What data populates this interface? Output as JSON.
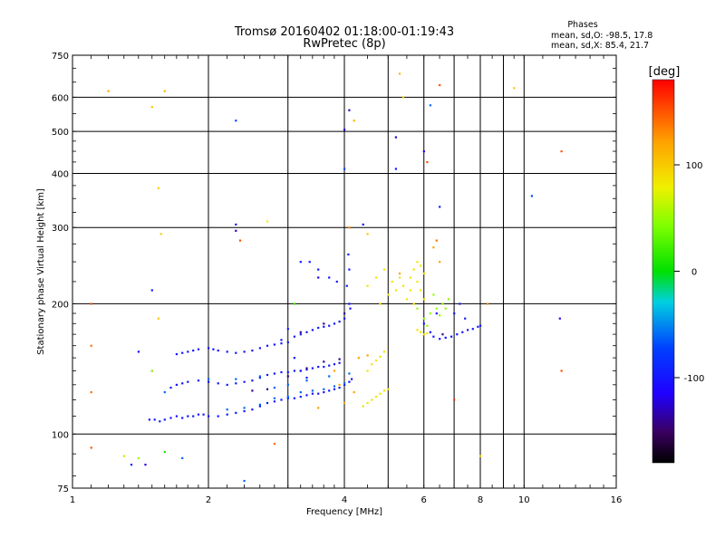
{
  "chart_data": {
    "type": "scatter",
    "title_line1": "Tromsø 20160402 01:18:00-01:19:43",
    "title_line2": "RwPretec (8p)",
    "xlabel": "Frequency [MHz]",
    "ylabel": "Stationary phase Virtual Height [km]",
    "x_scale": "log",
    "y_scale": "log",
    "xlim": [
      1,
      16
    ],
    "ylim": [
      75,
      750
    ],
    "x_ticks": [
      1,
      2,
      4,
      6,
      8,
      10,
      16
    ],
    "x_tick_labels": [
      "1",
      "2",
      "4",
      "6",
      "8",
      "10",
      "16"
    ],
    "x_minor_ticks": [
      3,
      5,
      7,
      9
    ],
    "y_ticks": [
      75,
      100,
      200,
      300,
      400,
      500,
      600,
      750
    ],
    "y_tick_labels": [
      "75",
      "100",
      "200",
      "300",
      "400",
      "500",
      "600",
      "750"
    ],
    "grid": true,
    "legend": {
      "title": "Phases",
      "line1": "mean, sd,O:  -98.5, 17.8",
      "line2": "mean, sd,X:   85.4, 21.7"
    },
    "colorbar": {
      "label": "[deg]",
      "range": [
        -180,
        180
      ],
      "ticks": [
        100,
        0,
        -100
      ],
      "tick_labels": [
        "100",
        "0",
        "-100"
      ]
    },
    "series": [
      {
        "comment": "O-mode trace, phase ~ -100 deg",
        "phase": -100,
        "points": [
          [
            1.48,
            108
          ],
          [
            1.52,
            108
          ],
          [
            1.56,
            107
          ],
          [
            1.6,
            108
          ],
          [
            1.65,
            109
          ],
          [
            1.7,
            110
          ],
          [
            1.75,
            109
          ],
          [
            1.8,
            110
          ],
          [
            1.85,
            110
          ],
          [
            1.9,
            111
          ],
          [
            1.95,
            111
          ],
          [
            2.0,
            110
          ],
          [
            2.1,
            110
          ],
          [
            2.2,
            111
          ],
          [
            2.3,
            112
          ],
          [
            2.4,
            113
          ],
          [
            2.5,
            114
          ],
          [
            2.6,
            116
          ],
          [
            2.7,
            118
          ],
          [
            2.8,
            119
          ],
          [
            2.9,
            120
          ],
          [
            3.0,
            121
          ],
          [
            3.1,
            121
          ],
          [
            3.2,
            122
          ],
          [
            3.3,
            123
          ],
          [
            3.4,
            124
          ],
          [
            3.5,
            124
          ],
          [
            3.6,
            125
          ],
          [
            3.7,
            126
          ],
          [
            3.8,
            127
          ],
          [
            3.9,
            128
          ],
          [
            4.0,
            130
          ],
          [
            4.1,
            132
          ],
          [
            4.15,
            134
          ],
          [
            1.65,
            128
          ],
          [
            1.7,
            130
          ],
          [
            1.75,
            131
          ],
          [
            1.8,
            132
          ],
          [
            1.9,
            133
          ],
          [
            2.0,
            132
          ],
          [
            2.1,
            131
          ],
          [
            2.2,
            130
          ],
          [
            2.3,
            131
          ],
          [
            2.4,
            132
          ],
          [
            2.5,
            133
          ],
          [
            2.6,
            135
          ],
          [
            2.7,
            137
          ],
          [
            2.8,
            138
          ],
          [
            2.9,
            139
          ],
          [
            3.0,
            139
          ],
          [
            3.1,
            140
          ],
          [
            3.2,
            140
          ],
          [
            3.3,
            141
          ],
          [
            3.4,
            142
          ],
          [
            3.5,
            143
          ],
          [
            3.6,
            143
          ],
          [
            3.7,
            144
          ],
          [
            3.8,
            145
          ],
          [
            3.9,
            146
          ],
          [
            1.7,
            153
          ],
          [
            1.75,
            154
          ],
          [
            1.8,
            155
          ],
          [
            1.85,
            156
          ],
          [
            1.9,
            157
          ],
          [
            2.0,
            158
          ],
          [
            2.05,
            157
          ],
          [
            2.1,
            156
          ],
          [
            2.2,
            155
          ],
          [
            2.3,
            154
          ],
          [
            2.4,
            155
          ],
          [
            2.5,
            156
          ],
          [
            2.6,
            158
          ],
          [
            2.7,
            160
          ],
          [
            2.8,
            161
          ],
          [
            2.9,
            162
          ],
          [
            3.0,
            163
          ],
          [
            3.1,
            168
          ],
          [
            3.2,
            170
          ],
          [
            3.3,
            172
          ],
          [
            3.4,
            174
          ],
          [
            3.5,
            176
          ],
          [
            3.6,
            177
          ],
          [
            3.7,
            178
          ],
          [
            3.8,
            180
          ],
          [
            3.9,
            182
          ],
          [
            4.0,
            185
          ],
          [
            4.1,
            200
          ],
          [
            4.05,
            220
          ],
          [
            4.1,
            240
          ],
          [
            4.08,
            260
          ],
          [
            4.12,
            195
          ],
          [
            3.35,
            250
          ],
          [
            3.5,
            240
          ],
          [
            3.7,
            230
          ],
          [
            3.85,
            225
          ],
          [
            2.9,
            165
          ],
          [
            3.0,
            175
          ],
          [
            3.1,
            150
          ],
          [
            3.2,
            140
          ],
          [
            3.3,
            135
          ],
          [
            6.3,
            168
          ],
          [
            6.5,
            166
          ],
          [
            6.7,
            167
          ],
          [
            6.9,
            168
          ],
          [
            7.1,
            170
          ],
          [
            7.3,
            172
          ],
          [
            7.5,
            174
          ],
          [
            7.7,
            175
          ],
          [
            7.9,
            177
          ],
          [
            8.0,
            178
          ],
          [
            6.0,
            180
          ],
          [
            6.2,
            172
          ],
          [
            7.0,
            190
          ],
          [
            7.2,
            200
          ],
          [
            7.4,
            185
          ],
          [
            6.4,
            190
          ]
        ]
      },
      {
        "comment": "O-mode trace, phase ~ -60 deg",
        "phase": -60,
        "points": [
          [
            2.2,
            114
          ],
          [
            2.4,
            115
          ],
          [
            2.6,
            117
          ],
          [
            2.8,
            121
          ],
          [
            3.0,
            122
          ],
          [
            3.2,
            125
          ],
          [
            3.4,
            126
          ],
          [
            3.6,
            127
          ],
          [
            3.8,
            129
          ],
          [
            4.0,
            131
          ],
          [
            2.0,
            134
          ],
          [
            2.3,
            134
          ],
          [
            2.6,
            136
          ],
          [
            2.8,
            128
          ],
          [
            3.0,
            130
          ],
          [
            3.3,
            133
          ],
          [
            3.7,
            136
          ],
          [
            4.1,
            138
          ],
          [
            1.5,
            140
          ],
          [
            1.6,
            125
          ]
        ]
      },
      {
        "comment": "O-mode trace, phase ~ -140 deg",
        "phase": -140,
        "points": [
          [
            2.5,
            126
          ],
          [
            2.7,
            127
          ],
          [
            3.0,
            136
          ],
          [
            3.3,
            142
          ],
          [
            3.6,
            147
          ],
          [
            3.9,
            149
          ],
          [
            3.2,
            172
          ],
          [
            3.6,
            180
          ],
          [
            4.0,
            190
          ],
          [
            6.6,
            170
          ]
        ]
      },
      {
        "comment": "X-mode trace, phase ~ 85 deg",
        "phase": 85,
        "points": [
          [
            4.6,
            120
          ],
          [
            4.7,
            122
          ],
          [
            4.8,
            124
          ],
          [
            4.9,
            126
          ],
          [
            5.0,
            127
          ],
          [
            4.5,
            118
          ],
          [
            4.4,
            116
          ],
          [
            4.6,
            145
          ],
          [
            4.7,
            148
          ],
          [
            4.8,
            151
          ],
          [
            4.5,
            140
          ],
          [
            4.9,
            155
          ],
          [
            4.8,
            200
          ],
          [
            5.0,
            210
          ],
          [
            5.2,
            215
          ],
          [
            5.4,
            220
          ],
          [
            5.6,
            230
          ],
          [
            5.7,
            240
          ],
          [
            5.8,
            250
          ],
          [
            5.9,
            245
          ],
          [
            6.0,
            235
          ],
          [
            5.5,
            205
          ],
          [
            5.6,
            215
          ],
          [
            5.8,
            225
          ],
          [
            5.9,
            215
          ],
          [
            6.0,
            205
          ],
          [
            5.7,
            200
          ],
          [
            5.3,
            230
          ],
          [
            5.1,
            225
          ],
          [
            5.9,
            172
          ],
          [
            6.1,
            171
          ],
          [
            5.8,
            174
          ],
          [
            6.0,
            170
          ],
          [
            4.5,
            220
          ],
          [
            4.7,
            230
          ],
          [
            4.9,
            240
          ]
        ]
      },
      {
        "comment": "X-mode trace, phase ~ 50 deg",
        "phase": 50,
        "points": [
          [
            6.0,
            185
          ],
          [
            6.2,
            190
          ],
          [
            6.4,
            195
          ],
          [
            6.6,
            200
          ],
          [
            6.8,
            205
          ],
          [
            6.3,
            210
          ],
          [
            6.5,
            188
          ],
          [
            6.7,
            195
          ],
          [
            6.1,
            178
          ],
          [
            5.8,
            195
          ]
        ]
      },
      {
        "comment": "X-mode trace, phase ~ 120 deg",
        "phase": 120,
        "points": [
          [
            4.3,
            150
          ],
          [
            4.5,
            152
          ],
          [
            3.8,
            140
          ],
          [
            3.9,
            130
          ],
          [
            5.3,
            235
          ],
          [
            6.3,
            270
          ],
          [
            6.5,
            250
          ],
          [
            4.2,
            125
          ],
          [
            3.5,
            115
          ],
          [
            4.0,
            118
          ]
        ]
      },
      {
        "comment": "Scattered noise points",
        "phase": null,
        "points": [
          [
            1.1,
            200,
            150
          ],
          [
            1.2,
            620,
            120
          ],
          [
            1.5,
            570,
            100
          ],
          [
            1.55,
            370,
            95
          ],
          [
            1.57,
            290,
            95
          ],
          [
            1.6,
            620,
            110
          ],
          [
            1.1,
            160,
            140
          ],
          [
            1.1,
            125,
            140
          ],
          [
            1.1,
            93,
            150
          ],
          [
            1.3,
            89,
            60
          ],
          [
            1.4,
            88,
            50
          ],
          [
            1.35,
            85,
            -100
          ],
          [
            1.45,
            85,
            -120
          ],
          [
            1.6,
            91,
            10
          ],
          [
            1.75,
            88,
            -60
          ],
          [
            1.4,
            155,
            -100
          ],
          [
            1.5,
            215,
            -100
          ],
          [
            1.55,
            185,
            100
          ],
          [
            1.5,
            140,
            60
          ],
          [
            2.3,
            295,
            -130
          ],
          [
            2.3,
            305,
            -100
          ],
          [
            2.35,
            280,
            150
          ],
          [
            2.4,
            78,
            -60
          ],
          [
            2.3,
            530,
            -70
          ],
          [
            2.7,
            310,
            80
          ],
          [
            2.8,
            95,
            140
          ],
          [
            3.1,
            200,
            20
          ],
          [
            3.2,
            250,
            -100
          ],
          [
            3.5,
            230,
            -120
          ],
          [
            4.0,
            505,
            -120
          ],
          [
            4.1,
            560,
            -130
          ],
          [
            4.0,
            410,
            -70
          ],
          [
            4.2,
            530,
            110
          ],
          [
            4.1,
            300,
            130
          ],
          [
            4.4,
            305,
            -100
          ],
          [
            4.5,
            290,
            100
          ],
          [
            5.2,
            485,
            -130
          ],
          [
            5.2,
            410,
            -100
          ],
          [
            5.3,
            680,
            110
          ],
          [
            5.4,
            600,
            95
          ],
          [
            6.0,
            450,
            -120
          ],
          [
            6.1,
            425,
            150
          ],
          [
            6.5,
            640,
            150
          ],
          [
            6.2,
            575,
            -60
          ],
          [
            6.5,
            335,
            -100
          ],
          [
            6.4,
            280,
            140
          ],
          [
            7.0,
            120,
            160
          ],
          [
            8.0,
            89,
            90
          ],
          [
            8.3,
            200,
            130
          ],
          [
            9.5,
            630,
            100
          ],
          [
            10.4,
            355,
            -70
          ],
          [
            12.0,
            185,
            -110
          ],
          [
            12.1,
            450,
            150
          ],
          [
            12.1,
            140,
            150
          ]
        ]
      }
    ]
  }
}
